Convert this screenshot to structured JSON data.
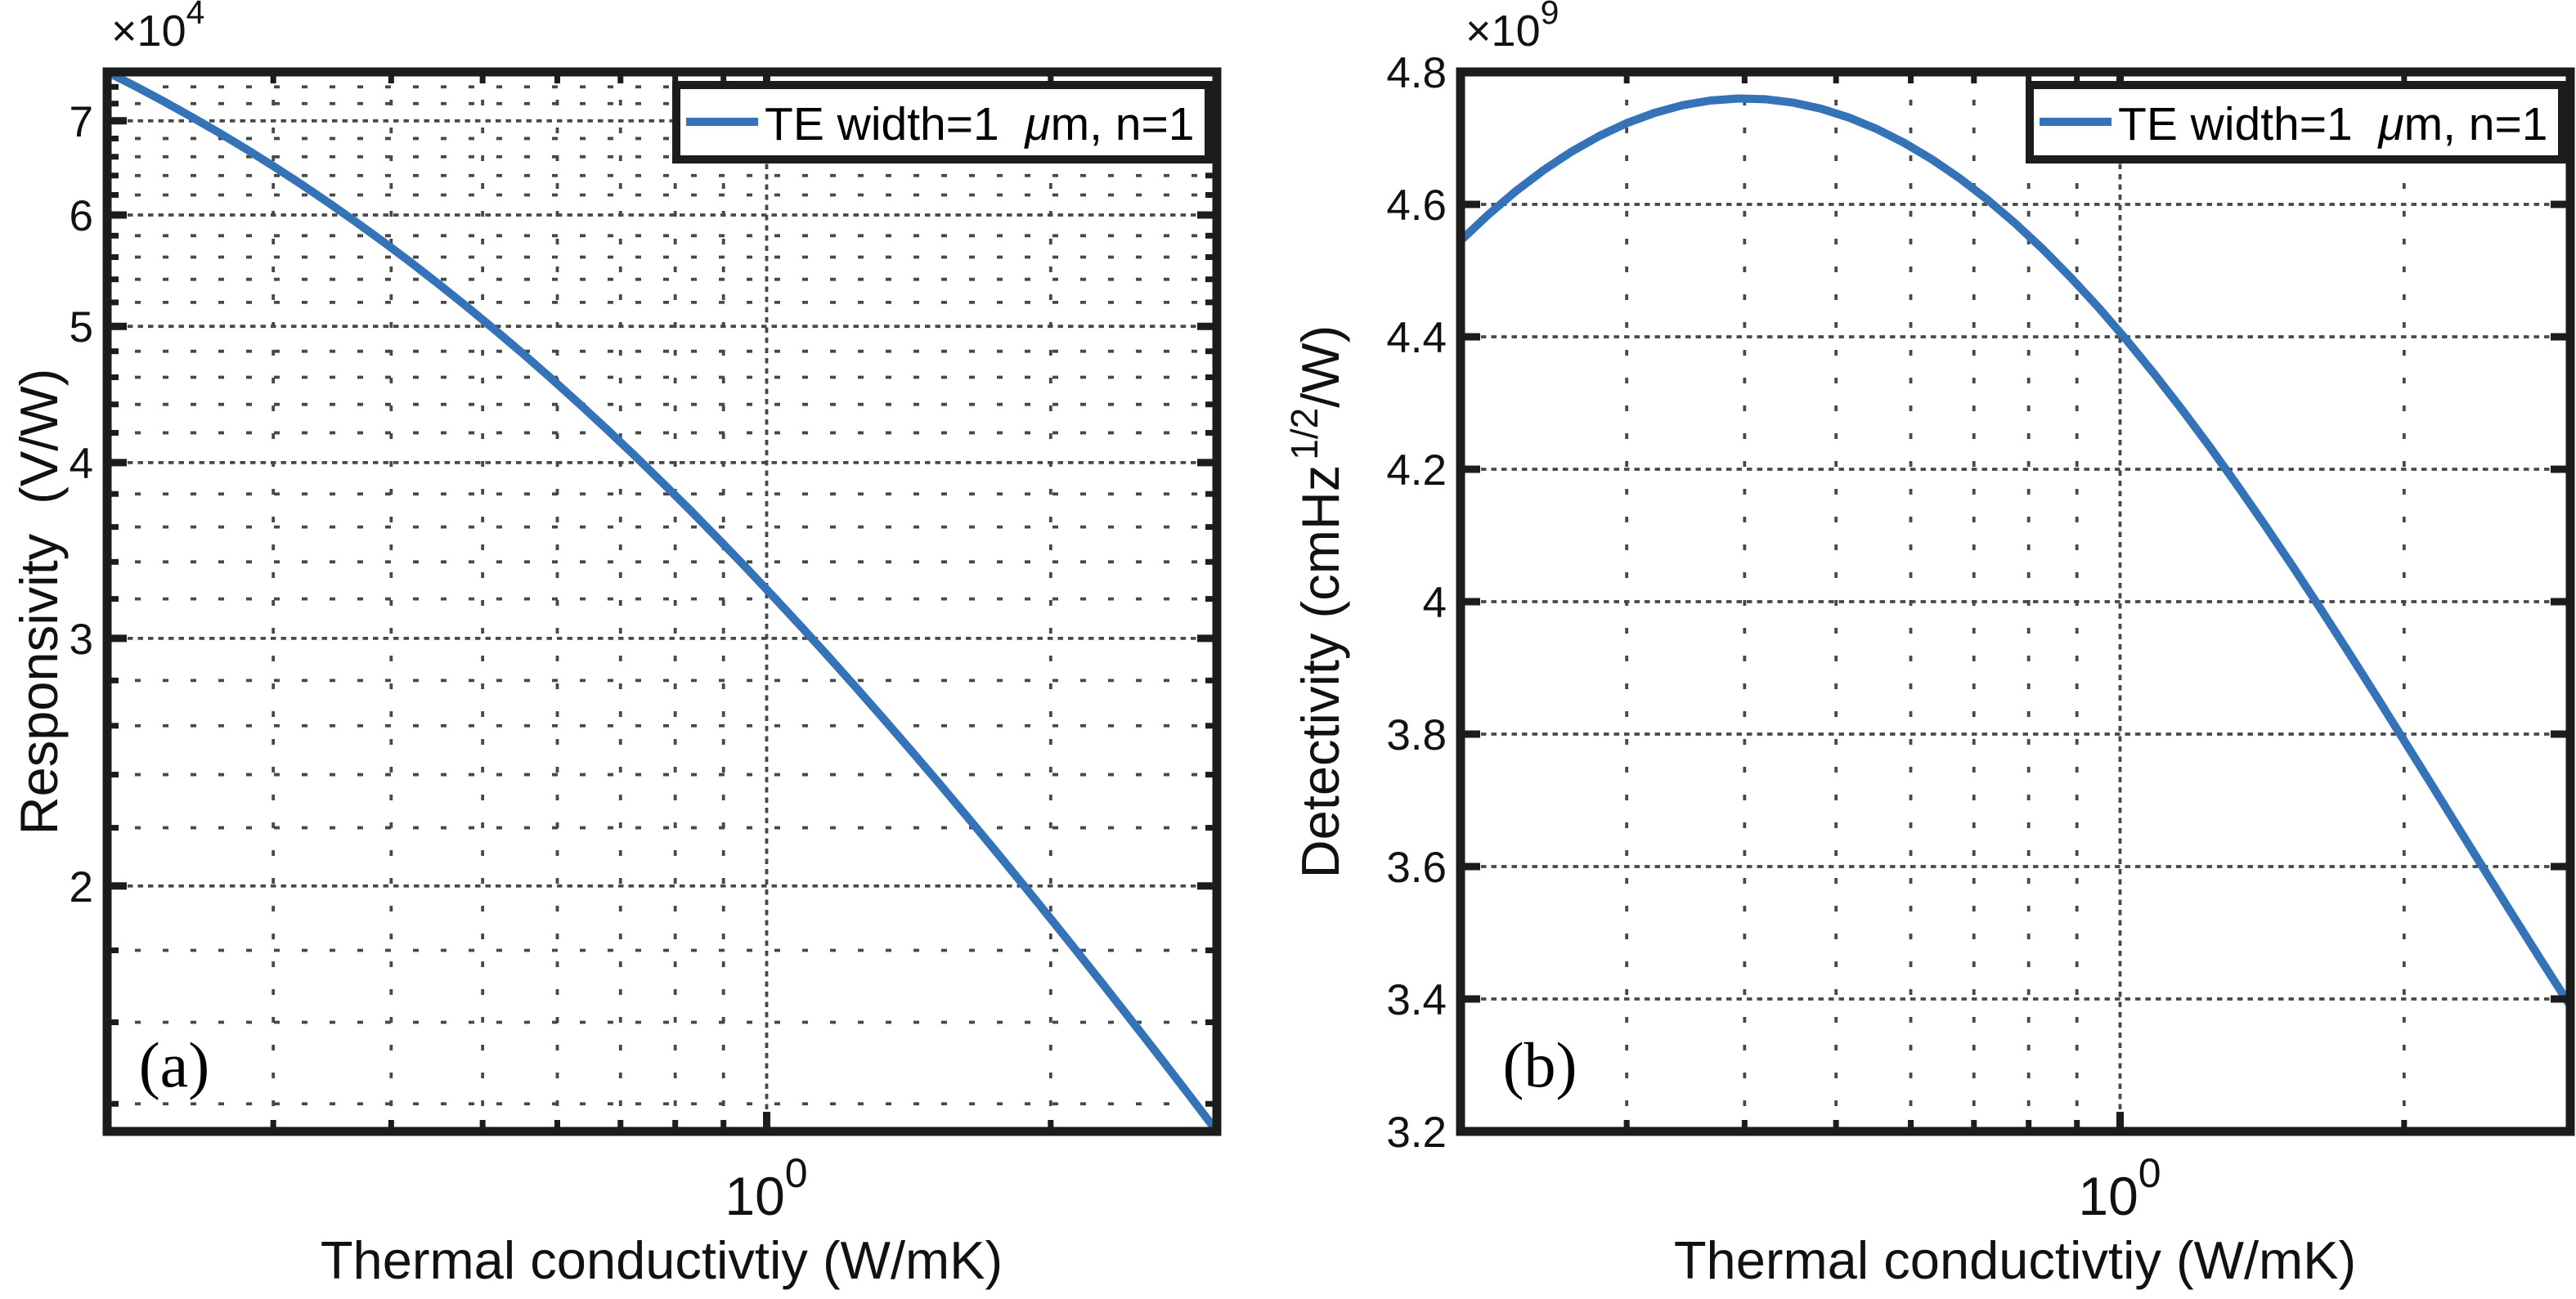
{
  "figure": {
    "background": "#ffffff",
    "axes_color": "#1c1c1c",
    "grid_color": "#484848",
    "line_color": "#3573b9"
  },
  "chart_data": [
    {
      "type": "line",
      "panel_label": "(a)",
      "xlabel": "Thermal conductivtiy (W/mK)",
      "ylabel": "Responsivity  (V/W)",
      "x_scale": "log",
      "x_range": [
        0.2,
        3
      ],
      "x_major_tick": {
        "value": 1,
        "base": "10",
        "exp": "0"
      },
      "x_minor_ticks": [
        0.3,
        0.4,
        0.5,
        0.6,
        0.7,
        0.8,
        0.9,
        2,
        3
      ],
      "y_scale": "log",
      "y_range": [
        1.3382,
        7.5833
      ],
      "y_unit_multiplier": {
        "base": "×10",
        "exp": "4"
      },
      "y_major_ticks": [
        {
          "v": 2,
          "label": "2"
        },
        {
          "v": 3,
          "label": "3"
        },
        {
          "v": 4,
          "label": "4"
        },
        {
          "v": 5,
          "label": "5"
        },
        {
          "v": 6,
          "label": "6"
        },
        {
          "v": 7,
          "label": "7"
        }
      ],
      "y_minor_ticks": [
        1.4,
        1.6,
        1.8,
        2.2,
        2.4,
        2.6,
        2.8,
        3.2,
        3.4,
        3.6,
        3.8,
        4.2,
        4.4,
        4.6,
        4.8,
        5.2,
        5.4,
        5.6,
        5.8,
        6.2,
        6.4,
        6.6,
        6.8,
        7.2,
        7.4
      ],
      "grid": "major+minor, dotted",
      "legend": {
        "position": "top-right",
        "label_pre": "TE width=1  ",
        "label_mu": "μ",
        "label_post": "m, n=1",
        "label": "TE width=1 μm, n=1"
      },
      "series": [
        {
          "name": "TE width=1 μm, n=1",
          "color": "#3573b9",
          "x": [
            0.2,
            0.214,
            0.229,
            0.245,
            0.2622,
            0.2806,
            0.3002,
            0.3213,
            0.3438,
            0.3678,
            0.3936,
            0.4212,
            0.4507,
            0.4822,
            0.516,
            0.5522,
            0.5908,
            0.6322,
            0.6765,
            0.7239,
            0.7746,
            0.8289,
            0.8869,
            0.949,
            1.0155,
            1.0866,
            1.1628,
            1.2442,
            1.3314,
            1.4246,
            1.5244,
            1.6312,
            1.7454,
            1.8677,
            1.9985,
            2.1385,
            2.2883,
            2.4486,
            2.6201,
            2.8036,
            3.0
          ],
          "y": [
            7.5833,
            7.4103,
            7.2337,
            7.0538,
            6.871,
            6.6856,
            6.4979,
            6.3085,
            6.1176,
            5.9258,
            5.7334,
            5.5409,
            5.3487,
            5.1574,
            4.9672,
            4.7786,
            4.5921,
            4.408,
            4.2266,
            4.0484,
            3.8737,
            3.7026,
            3.5356,
            3.3728,
            3.2144,
            3.0606,
            2.9115,
            2.7673,
            2.628,
            2.4937,
            2.3644,
            2.2401,
            2.1208,
            2.0064,
            1.897,
            1.7924,
            1.6925,
            1.5973,
            1.5066,
            1.4203,
            1.3382
          ]
        }
      ]
    },
    {
      "type": "line",
      "panel_label": "(b)",
      "xlabel": "Thermal conductivtiy (W/mK)",
      "ylabel_parts": {
        "pre": "Detectivity (cmHz",
        "sup": "1/2",
        "post": "/W)"
      },
      "x_scale": "log",
      "x_range": [
        0.2,
        3
      ],
      "x_major_tick": {
        "value": 1,
        "base": "10",
        "exp": "0"
      },
      "x_minor_ticks": [
        0.3,
        0.4,
        0.5,
        0.6,
        0.7,
        0.8,
        0.9,
        2,
        3
      ],
      "y_scale": "linear",
      "y_range": [
        3.2,
        4.8
      ],
      "y_unit_multiplier": {
        "base": "×10",
        "exp": "9"
      },
      "y_major_ticks": [
        {
          "v": 3.2,
          "label": "3.2"
        },
        {
          "v": 3.4,
          "label": "3.4"
        },
        {
          "v": 3.6,
          "label": "3.6"
        },
        {
          "v": 3.8,
          "label": "3.8"
        },
        {
          "v": 4,
          "label": "4"
        },
        {
          "v": 4.2,
          "label": "4.2"
        },
        {
          "v": 4.4,
          "label": "4.4"
        },
        {
          "v": 4.6,
          "label": "4.6"
        },
        {
          "v": 4.8,
          "label": "4.8"
        }
      ],
      "y_minor_ticks": [],
      "grid": "major + x-minor, dotted",
      "legend": {
        "position": "top-right",
        "label_pre": "TE width=1  ",
        "label_mu": "μ",
        "label_post": "m, n=1",
        "label": "TE width=1 μm, n=1"
      },
      "series": [
        {
          "name": "TE width=1 μm, n=1",
          "color": "#3573b9",
          "x": [
            0.2,
            0.214,
            0.229,
            0.245,
            0.2622,
            0.2806,
            0.3002,
            0.3213,
            0.3438,
            0.3678,
            0.3936,
            0.4212,
            0.4507,
            0.4822,
            0.516,
            0.5522,
            0.5908,
            0.6322,
            0.6765,
            0.7239,
            0.7746,
            0.8289,
            0.8869,
            0.949,
            1.0155,
            1.0866,
            1.1628,
            1.2442,
            1.3314,
            1.4246,
            1.5244,
            1.6312,
            1.7454,
            1.8677,
            1.9985,
            2.1385,
            2.2883,
            2.4486,
            2.6201,
            2.8036,
            3.0
          ],
          "y": [
            4.545,
            4.5845,
            4.6202,
            4.6519,
            4.6796,
            4.7033,
            4.7229,
            4.7383,
            4.7497,
            4.7568,
            4.7599,
            4.7588,
            4.7536,
            4.7444,
            4.7311,
            4.7138,
            4.6927,
            4.6678,
            4.6391,
            4.6068,
            4.571,
            4.5319,
            4.4894,
            4.4439,
            4.3954,
            4.3442,
            4.2903,
            4.2341,
            4.1756,
            4.1152,
            4.0529,
            3.9891,
            3.9241,
            3.8579,
            3.791,
            3.7237,
            3.6561,
            3.5886,
            3.5215,
            3.4551,
            3.3897
          ]
        }
      ]
    }
  ]
}
